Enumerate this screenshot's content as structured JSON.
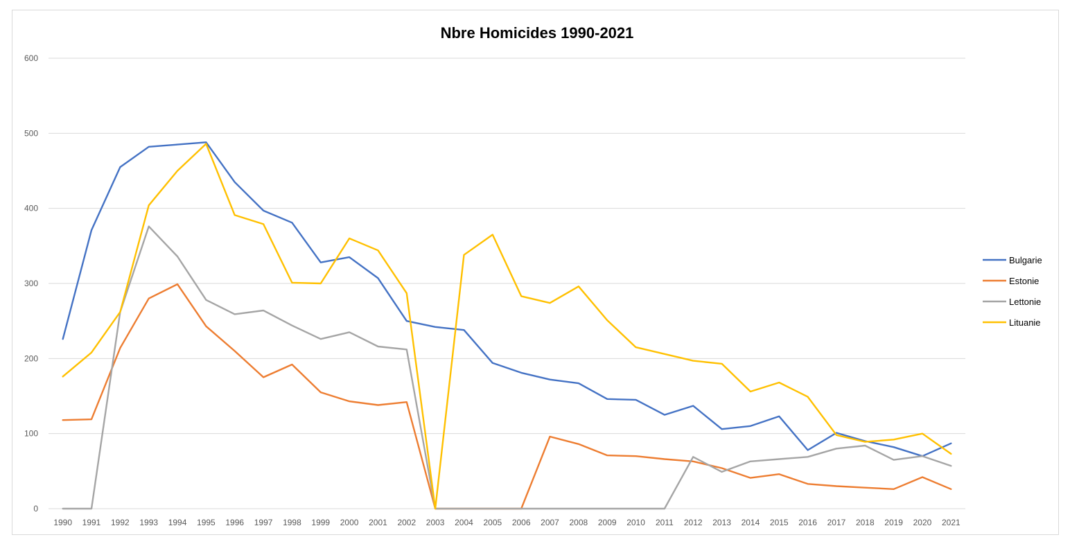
{
  "chart_data": {
    "type": "line",
    "title": "Nbre Homicides 1990-2021",
    "xlabel": "",
    "ylabel": "",
    "ylim": [
      0,
      600
    ],
    "yticks": [
      0,
      100,
      200,
      300,
      400,
      500,
      600
    ],
    "grid": true,
    "legend_position": "right",
    "x": [
      "1990",
      "1991",
      "1992",
      "1993",
      "1994",
      "1995",
      "1996",
      "1997",
      "1998",
      "1999",
      "2000",
      "2001",
      "2002",
      "2003",
      "2004",
      "2005",
      "2006",
      "2007",
      "2008",
      "2009",
      "2010",
      "2011",
      "2012",
      "2013",
      "2014",
      "2015",
      "2016",
      "2017",
      "2018",
      "2019",
      "2020",
      "2021"
    ],
    "series": [
      {
        "name": "Bulgarie",
        "color": "#4472c4",
        "values": [
          226,
          371,
          455,
          482,
          485,
          488,
          435,
          397,
          381,
          328,
          335,
          307,
          250,
          242,
          238,
          194,
          181,
          172,
          167,
          146,
          145,
          125,
          137,
          106,
          110,
          123,
          78,
          101,
          90,
          82,
          70,
          87
        ]
      },
      {
        "name": "Estonie",
        "color": "#ed7d31",
        "values": [
          118,
          119,
          214,
          280,
          299,
          243,
          210,
          175,
          192,
          155,
          143,
          138,
          142,
          0,
          0,
          0,
          0,
          96,
          86,
          71,
          70,
          66,
          63,
          54,
          41,
          46,
          33,
          30,
          28,
          26,
          42,
          26
        ]
      },
      {
        "name": "Lettonie",
        "color": "#a5a5a5",
        "values": [
          0,
          0,
          262,
          376,
          336,
          278,
          259,
          264,
          244,
          226,
          235,
          216,
          212,
          0,
          0,
          0,
          0,
          0,
          0,
          0,
          0,
          0,
          69,
          49,
          63,
          66,
          69,
          80,
          84,
          65,
          70,
          57
        ]
      },
      {
        "name": "Lituanie",
        "color": "#ffc000",
        "values": [
          176,
          208,
          262,
          404,
          450,
          486,
          391,
          379,
          301,
          300,
          360,
          344,
          287,
          0,
          338,
          365,
          283,
          274,
          296,
          251,
          215,
          206,
          197,
          193,
          156,
          168,
          149,
          98,
          89,
          92,
          100,
          73
        ]
      }
    ]
  }
}
